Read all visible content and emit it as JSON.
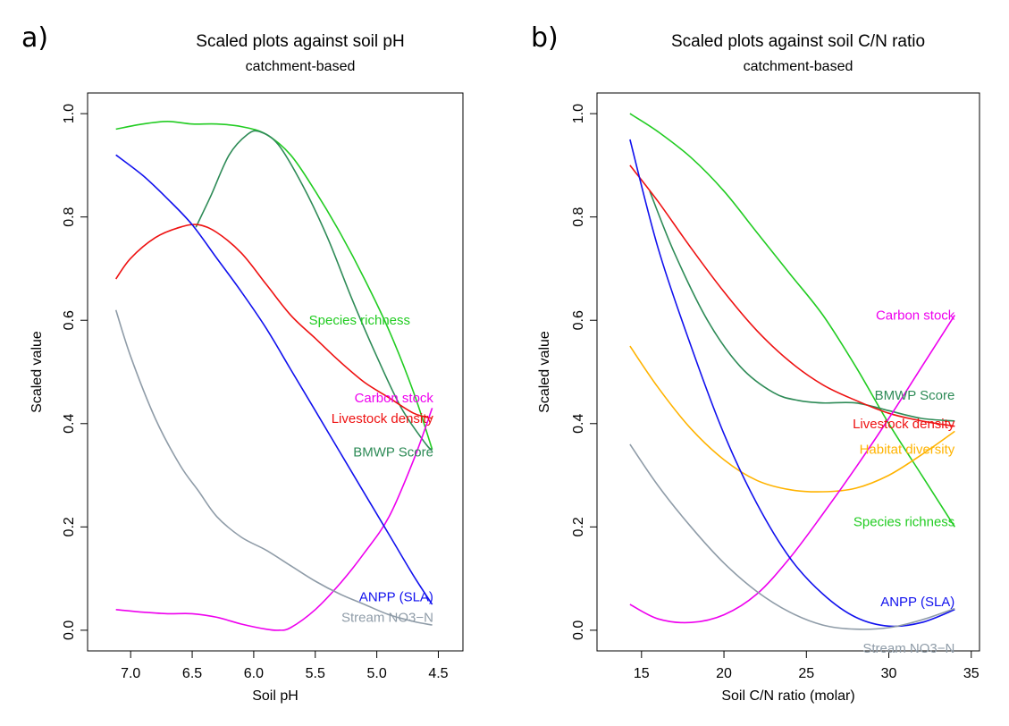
{
  "chart_data": [
    {
      "panel_label": "a)",
      "type": "line",
      "title": "Scaled plots against soil pH",
      "subtitle": "catchment-based",
      "xlabel": "Soil pH",
      "ylabel": "Scaled value",
      "x_reversed": true,
      "xlim": [
        7.35,
        4.3
      ],
      "ylim": [
        -0.04,
        1.04
      ],
      "x_ticks": [
        7.0,
        6.5,
        6.0,
        5.5,
        5.0,
        4.5
      ],
      "x_tick_labels": [
        "7.0",
        "6.5",
        "6.0",
        "5.5",
        "5.0",
        "4.5"
      ],
      "y_ticks": [
        0.0,
        0.2,
        0.4,
        0.6,
        0.8,
        1.0
      ],
      "y_tick_labels": [
        "0.0",
        "0.2",
        "0.4",
        "0.6",
        "0.8",
        "1.0"
      ],
      "grid": false,
      "series": [
        {
          "name": "Species richness",
          "color": "#22cc22",
          "x": [
            7.12,
            6.9,
            6.7,
            6.5,
            6.3,
            6.1,
            5.9,
            5.7,
            5.5,
            5.3,
            5.1,
            4.9,
            4.7,
            4.55
          ],
          "y": [
            0.97,
            0.98,
            0.985,
            0.98,
            0.98,
            0.975,
            0.96,
            0.92,
            0.85,
            0.77,
            0.68,
            0.58,
            0.46,
            0.35
          ]
        },
        {
          "name": "BMWP Score",
          "color": "#2e8b57",
          "x": [
            6.47,
            6.35,
            6.2,
            6.05,
            5.95,
            5.8,
            5.6,
            5.4,
            5.2,
            5.0,
            4.8,
            4.6,
            4.55
          ],
          "y": [
            0.78,
            0.84,
            0.92,
            0.96,
            0.965,
            0.94,
            0.86,
            0.76,
            0.64,
            0.53,
            0.43,
            0.36,
            0.35
          ]
        },
        {
          "name": "Livestock density",
          "color": "#ee1111",
          "x": [
            7.12,
            7.0,
            6.8,
            6.6,
            6.45,
            6.3,
            6.1,
            5.9,
            5.7,
            5.5,
            5.3,
            5.1,
            4.9,
            4.7,
            4.55
          ],
          "y": [
            0.68,
            0.72,
            0.76,
            0.78,
            0.785,
            0.77,
            0.73,
            0.67,
            0.61,
            0.565,
            0.52,
            0.48,
            0.45,
            0.42,
            0.41
          ]
        },
        {
          "name": "Carbon stock",
          "color": "#ee00ee",
          "x": [
            7.12,
            6.9,
            6.7,
            6.5,
            6.3,
            6.1,
            5.9,
            5.8,
            5.7,
            5.5,
            5.3,
            5.1,
            4.9,
            4.7,
            4.55
          ],
          "y": [
            0.04,
            0.035,
            0.032,
            0.032,
            0.025,
            0.012,
            0.002,
            0.0,
            0.005,
            0.04,
            0.09,
            0.15,
            0.22,
            0.33,
            0.43
          ]
        },
        {
          "name": "ANPP (SLA)",
          "color": "#1111ee",
          "x": [
            7.12,
            6.9,
            6.7,
            6.5,
            6.3,
            6.1,
            5.9,
            5.7,
            5.5,
            5.3,
            5.1,
            4.9,
            4.7,
            4.55
          ],
          "y": [
            0.92,
            0.88,
            0.835,
            0.785,
            0.72,
            0.655,
            0.585,
            0.505,
            0.425,
            0.345,
            0.265,
            0.185,
            0.105,
            0.05
          ]
        },
        {
          "name": "Stream NO3-N",
          "color": "#8f9ca8",
          "x": [
            7.12,
            7.0,
            6.8,
            6.6,
            6.45,
            6.3,
            6.1,
            5.9,
            5.7,
            5.5,
            5.3,
            5.1,
            4.9,
            4.7,
            4.55
          ],
          "y": [
            0.62,
            0.53,
            0.41,
            0.32,
            0.27,
            0.22,
            0.18,
            0.155,
            0.125,
            0.095,
            0.07,
            0.05,
            0.03,
            0.017,
            0.01
          ]
        }
      ],
      "labels": [
        {
          "text": "Species richness",
          "series": "Species richness",
          "x": 5.14,
          "y": 0.6,
          "anchor": "middle"
        },
        {
          "text": "Carbon stock",
          "series": "Carbon stock",
          "x": 4.54,
          "y": 0.45,
          "anchor": "end"
        },
        {
          "text": "Livestock density",
          "series": "Livestock density",
          "x": 4.54,
          "y": 0.41,
          "anchor": "end"
        },
        {
          "text": "BMWP Score",
          "series": "BMWP Score",
          "x": 4.54,
          "y": 0.345,
          "anchor": "end"
        },
        {
          "text": "ANPP (SLA)",
          "series": "ANPP (SLA)",
          "x": 4.54,
          "y": 0.065,
          "anchor": "end"
        },
        {
          "text": "Stream NO3−N",
          "series": "Stream NO3-N",
          "x": 4.54,
          "y": 0.025,
          "anchor": "end"
        }
      ]
    },
    {
      "panel_label": "b)",
      "type": "line",
      "title": "Scaled plots against soil C/N ratio",
      "subtitle": "catchment-based",
      "xlabel": "Soil C/N ratio (molar)",
      "ylabel": "Scaled value",
      "x_reversed": false,
      "xlim": [
        12.3,
        35.5
      ],
      "ylim": [
        -0.04,
        1.04
      ],
      "x_ticks": [
        15,
        20,
        25,
        30,
        35
      ],
      "x_tick_labels": [
        "15",
        "20",
        "25",
        "30",
        "35"
      ],
      "y_ticks": [
        0.0,
        0.2,
        0.4,
        0.6,
        0.8,
        1.0
      ],
      "y_tick_labels": [
        "0.0",
        "0.2",
        "0.4",
        "0.6",
        "0.8",
        "1.0"
      ],
      "grid": false,
      "series": [
        {
          "name": "Species richness",
          "color": "#22cc22",
          "x": [
            14.3,
            16,
            18,
            20,
            22,
            24,
            26,
            28,
            30,
            32,
            34
          ],
          "y": [
            1.0,
            0.965,
            0.915,
            0.85,
            0.77,
            0.69,
            0.61,
            0.51,
            0.4,
            0.3,
            0.2
          ]
        },
        {
          "name": "BMWP Score",
          "color": "#2e8b57",
          "x": [
            15.5,
            17,
            19,
            21,
            23,
            24.5,
            26,
            28,
            30,
            32,
            34
          ],
          "y": [
            0.85,
            0.73,
            0.6,
            0.51,
            0.46,
            0.445,
            0.44,
            0.44,
            0.425,
            0.41,
            0.405
          ]
        },
        {
          "name": "Livestock density",
          "color": "#ee1111",
          "x": [
            14.3,
            16,
            18,
            20,
            22,
            24,
            26,
            28,
            30,
            32,
            34
          ],
          "y": [
            0.9,
            0.83,
            0.74,
            0.655,
            0.58,
            0.52,
            0.475,
            0.445,
            0.42,
            0.405,
            0.395
          ]
        },
        {
          "name": "Habitat diversity",
          "color": "#ffb300",
          "x": [
            14.3,
            16,
            18,
            20,
            22,
            24,
            26,
            28,
            30,
            32,
            34
          ],
          "y": [
            0.55,
            0.47,
            0.39,
            0.33,
            0.29,
            0.272,
            0.268,
            0.275,
            0.3,
            0.34,
            0.385
          ]
        },
        {
          "name": "Carbon stock",
          "color": "#ee00ee",
          "x": [
            14.3,
            16,
            18,
            20,
            22,
            24,
            26,
            28,
            30,
            32,
            34
          ],
          "y": [
            0.05,
            0.022,
            0.015,
            0.03,
            0.07,
            0.14,
            0.225,
            0.315,
            0.41,
            0.51,
            0.61
          ]
        },
        {
          "name": "ANPP (SLA)",
          "color": "#1111ee",
          "x": [
            14.3,
            16,
            18,
            20,
            22,
            24,
            26,
            28,
            30,
            32,
            34
          ],
          "y": [
            0.95,
            0.74,
            0.55,
            0.38,
            0.245,
            0.14,
            0.07,
            0.025,
            0.008,
            0.015,
            0.04
          ]
        },
        {
          "name": "Stream NO3-N",
          "color": "#8f9ca8",
          "x": [
            14.3,
            16,
            18,
            20,
            22,
            24,
            26,
            28,
            30,
            32,
            34
          ],
          "y": [
            0.36,
            0.28,
            0.2,
            0.13,
            0.075,
            0.035,
            0.01,
            0.002,
            0.005,
            0.02,
            0.042
          ]
        }
      ],
      "labels": [
        {
          "text": "Carbon stock",
          "series": "Carbon stock",
          "x": 34.0,
          "y": 0.61,
          "anchor": "end"
        },
        {
          "text": "BMWP Score",
          "series": "BMWP Score",
          "x": 34.0,
          "y": 0.455,
          "anchor": "end"
        },
        {
          "text": "Livestock density",
          "series": "Livestock density",
          "x": 34.0,
          "y": 0.4,
          "anchor": "end"
        },
        {
          "text": "Habitat diversity",
          "series": "Habitat diversity",
          "x": 34.0,
          "y": 0.35,
          "anchor": "end"
        },
        {
          "text": "Species richness",
          "series": "Species richness",
          "x": 34.0,
          "y": 0.21,
          "anchor": "end"
        },
        {
          "text": "ANPP (SLA)",
          "series": "ANPP (SLA)",
          "x": 34.0,
          "y": 0.055,
          "anchor": "end"
        },
        {
          "text": "Stream NO3−N",
          "series": "Stream NO3-N",
          "x": 34.0,
          "y": -0.035,
          "anchor": "end"
        }
      ]
    }
  ]
}
